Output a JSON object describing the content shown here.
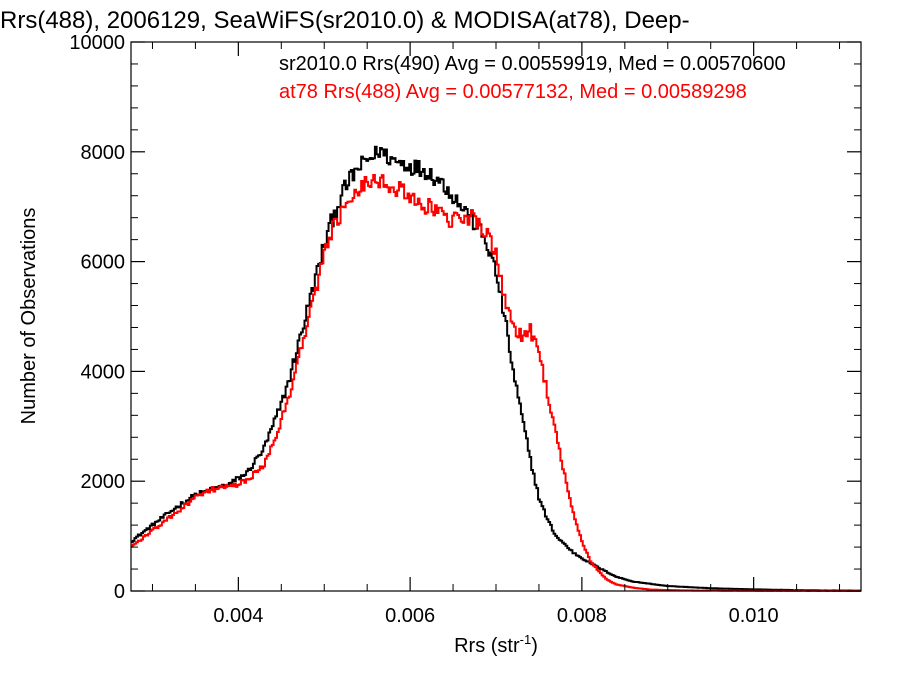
{
  "chart_data": {
    "type": "line",
    "title": "Rrs(488), 2006129, SeaWiFS(sr2010.0) & MODISA(at78), Deep-",
    "xlabel": "Rrs (str",
    "xlabel_superscript": "-1",
    "xlabel_suffix": ")",
    "ylabel": "Number of Observations",
    "xlim": [
      0.00275,
      0.01125
    ],
    "ylim": [
      0,
      10000
    ],
    "xticks": [
      0.004,
      0.006,
      0.008,
      0.01
    ],
    "xtick_labels": [
      "0.004",
      "0.006",
      "0.008",
      "0.010"
    ],
    "yticks": [
      0,
      2000,
      4000,
      6000,
      8000,
      10000
    ],
    "ytick_labels": [
      "0",
      "2000",
      "4000",
      "6000",
      "8000",
      "10000"
    ],
    "grid": false,
    "annotations": [
      "sr2010.0 Rrs(490) Avg = 0.00559919, Med = 0.00570600",
      "at78 Rrs(488) Avg = 0.00577132, Med = 0.00589298"
    ],
    "series": [
      {
        "color": "#000000",
        "x": [
          0.00275,
          0.003,
          0.0033,
          0.0035,
          0.0037,
          0.0039,
          0.0041,
          0.0043,
          0.0044,
          0.0045,
          0.0046,
          0.0047,
          0.0048,
          0.0049,
          0.005,
          0.0051,
          0.0052,
          0.0053,
          0.0054,
          0.0055,
          0.0056,
          0.00565,
          0.0057,
          0.0058,
          0.006,
          0.0062,
          0.0064,
          0.0066,
          0.0068,
          0.0069,
          0.007,
          0.0071,
          0.0072,
          0.0073,
          0.0074,
          0.0075,
          0.0076,
          0.0077,
          0.0078,
          0.0079,
          0.008,
          0.0082,
          0.0084,
          0.0086,
          0.009,
          0.0095,
          0.01,
          0.0105,
          0.011,
          0.01125
        ],
        "y": [
          900,
          1200,
          1550,
          1750,
          1850,
          1950,
          2150,
          2600,
          3000,
          3400,
          3900,
          4500,
          5100,
          5700,
          6300,
          6800,
          7200,
          7500,
          7700,
          7850,
          7950,
          8050,
          7950,
          7850,
          7750,
          7650,
          7400,
          7000,
          6600,
          6300,
          5800,
          5000,
          4000,
          3200,
          2400,
          1700,
          1300,
          1000,
          850,
          700,
          600,
          420,
          260,
          170,
          90,
          50,
          30,
          15,
          8,
          5
        ]
      },
      {
        "color": "#ff0000",
        "x": [
          0.00275,
          0.003,
          0.0033,
          0.0035,
          0.0037,
          0.0039,
          0.0041,
          0.0043,
          0.0044,
          0.0045,
          0.0046,
          0.0047,
          0.0048,
          0.0049,
          0.005,
          0.0051,
          0.0052,
          0.0053,
          0.0054,
          0.0055,
          0.0056,
          0.0057,
          0.0058,
          0.006,
          0.0062,
          0.0064,
          0.0066,
          0.0067,
          0.0068,
          0.0069,
          0.007,
          0.0071,
          0.0072,
          0.0073,
          0.0074,
          0.0075,
          0.0076,
          0.0077,
          0.0078,
          0.0079,
          0.008,
          0.0081,
          0.0082,
          0.0083,
          0.0084,
          0.0086,
          0.0088,
          0.0092,
          0.01,
          0.011,
          0.01125
        ],
        "y": [
          800,
          1100,
          1450,
          1700,
          1850,
          1900,
          2000,
          2300,
          2700,
          3100,
          3600,
          4200,
          4900,
          5500,
          6100,
          6600,
          6900,
          7200,
          7350,
          7450,
          7500,
          7500,
          7350,
          7200,
          7000,
          6800,
          6700,
          6850,
          6750,
          6450,
          6100,
          5300,
          4800,
          4650,
          4750,
          4300,
          3600,
          2900,
          2100,
          1400,
          900,
          550,
          350,
          200,
          120,
          60,
          25,
          10,
          4,
          2,
          1
        ]
      }
    ]
  }
}
